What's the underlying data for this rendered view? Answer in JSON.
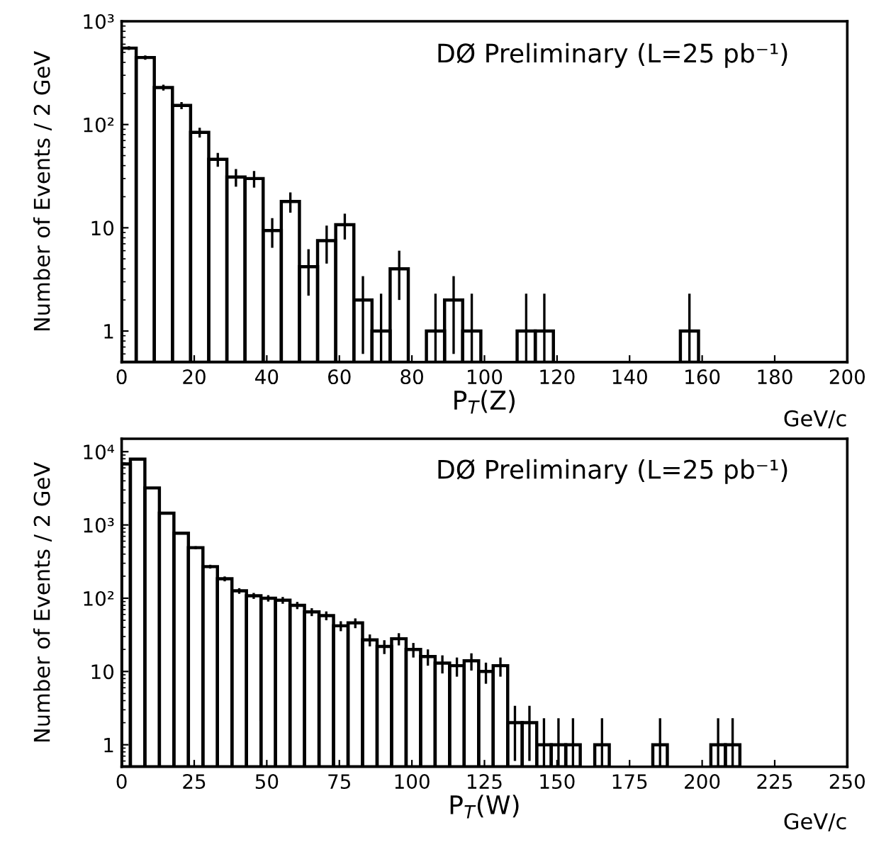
{
  "chart_data": [
    {
      "type": "histogram",
      "title": "DØ Preliminary (L=25 pb⁻¹)",
      "xlabel": "P$_{T}$(Z)",
      "ylabel": "Number of Events / 2 GeV",
      "annotations": [
        "GeV/c"
      ],
      "color": "#000000",
      "log": true,
      "grid": false,
      "legend": false,
      "bins": [
        0,
        4,
        9,
        14,
        19,
        24,
        29,
        34,
        39,
        44,
        49,
        54,
        59,
        64,
        69,
        74,
        79,
        84,
        89,
        94,
        99,
        109,
        114,
        119,
        154,
        159
      ],
      "values": [
        550,
        446,
        228,
        153,
        84,
        46,
        31,
        30,
        9.4,
        18,
        4.2,
        7.5,
        10.7,
        2,
        1,
        4,
        null,
        1,
        2,
        1,
        null,
        1,
        1,
        null,
        1
      ],
      "errors": [
        23,
        21,
        15,
        12,
        9,
        7,
        6,
        5.5,
        3,
        4,
        2,
        3,
        3,
        [
          0.6,
          3.4
        ],
        [
          0.5,
          2.3
        ],
        2,
        null,
        [
          0.5,
          2.3
        ],
        [
          0.6,
          3.4
        ],
        [
          0.5,
          2.3
        ],
        null,
        [
          0.5,
          2.3
        ],
        [
          0.5,
          2.3
        ],
        null,
        [
          0.5,
          2.3
        ]
      ],
      "xlim": [
        0,
        200
      ],
      "xticks": [
        0,
        20,
        40,
        60,
        80,
        100,
        120,
        140,
        160,
        180,
        200
      ],
      "ylim": [
        0.5,
        1000
      ],
      "yticks": [
        1,
        10,
        {
          "value": 100,
          "label": "10²"
        },
        {
          "value": 1000,
          "label": "10³"
        }
      ]
    },
    {
      "type": "histogram",
      "title": "DØ Preliminary (L=25 pb⁻¹)",
      "xlabel": "P$_{T}$(W)",
      "ylabel": "Number of Events / 2 GeV",
      "annotations": [
        "GeV/c"
      ],
      "color": "#000000",
      "log": true,
      "grid": false,
      "legend": false,
      "bins": [
        0,
        3,
        8,
        13,
        18,
        23,
        28,
        33,
        38,
        43,
        48,
        53,
        58,
        63,
        68,
        73,
        78,
        83,
        88,
        93,
        98,
        103,
        108,
        113,
        118,
        123,
        128,
        133,
        138,
        143,
        148,
        153,
        158,
        163,
        168,
        183,
        188,
        203,
        208,
        213
      ],
      "values": [
        6800,
        7900,
        3200,
        1450,
        770,
        490,
        270,
        184,
        126,
        108,
        100,
        94,
        80,
        65,
        58,
        42,
        46,
        27,
        22,
        28,
        20,
        16,
        13,
        12,
        14,
        10,
        12,
        2,
        2,
        1,
        1,
        1,
        null,
        1,
        null,
        1,
        null,
        1,
        1
      ],
      "errors": [
        null,
        null,
        57,
        38,
        28,
        22,
        16,
        14,
        11,
        10,
        10,
        10,
        9,
        8,
        8,
        6.5,
        7,
        5,
        4.7,
        5.3,
        4.5,
        4,
        3.6,
        3.5,
        3.7,
        3.2,
        3.5,
        [
          0.6,
          3.4
        ],
        [
          0.6,
          3.4
        ],
        [
          0.5,
          2.3
        ],
        [
          0.5,
          2.3
        ],
        [
          0.5,
          2.3
        ],
        null,
        [
          0.5,
          2.3
        ],
        null,
        [
          0.5,
          2.3
        ],
        null,
        [
          0.5,
          2.3
        ],
        [
          0.5,
          2.3
        ]
      ],
      "xlim": [
        0,
        250
      ],
      "xticks": [
        0,
        25,
        50,
        75,
        100,
        125,
        150,
        175,
        200,
        225,
        250
      ],
      "ylim": [
        0.5,
        15000
      ],
      "yticks": [
        1,
        10,
        {
          "value": 100,
          "label": "10²"
        },
        {
          "value": 1000,
          "label": "10³"
        },
        {
          "value": 10000,
          "label": "10⁴"
        }
      ]
    }
  ]
}
